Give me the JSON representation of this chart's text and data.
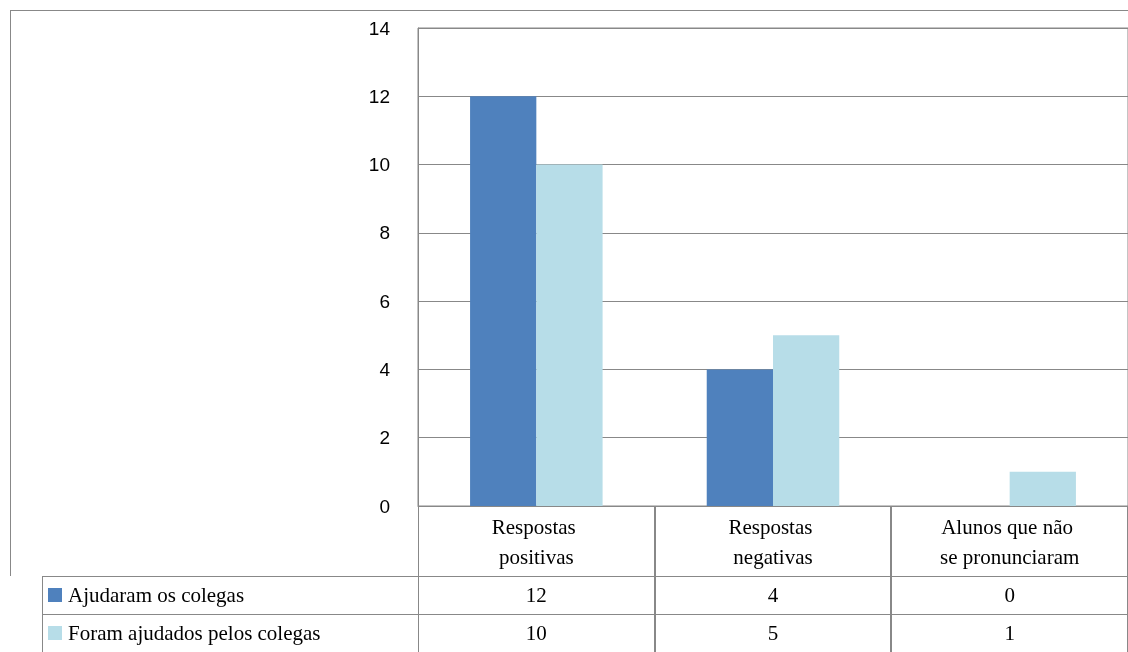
{
  "chart_data": {
    "type": "bar",
    "categories": [
      "Respostas positivas",
      "Respostas negativas",
      "Alunos que não se pronunciaram"
    ],
    "series": [
      {
        "name": "Ajudaram os colegas",
        "color": "#4f81bd",
        "values": [
          12,
          4,
          0
        ]
      },
      {
        "name": "Foram ajudados pelos colegas",
        "color": "#b7dde8",
        "values": [
          10,
          5,
          1
        ]
      }
    ],
    "ylim": [
      0,
      14
    ],
    "yticks": [
      0,
      2,
      4,
      6,
      8,
      10,
      12,
      14
    ],
    "grid": "y",
    "legend": "bottom left",
    "data_labels": true
  }
}
